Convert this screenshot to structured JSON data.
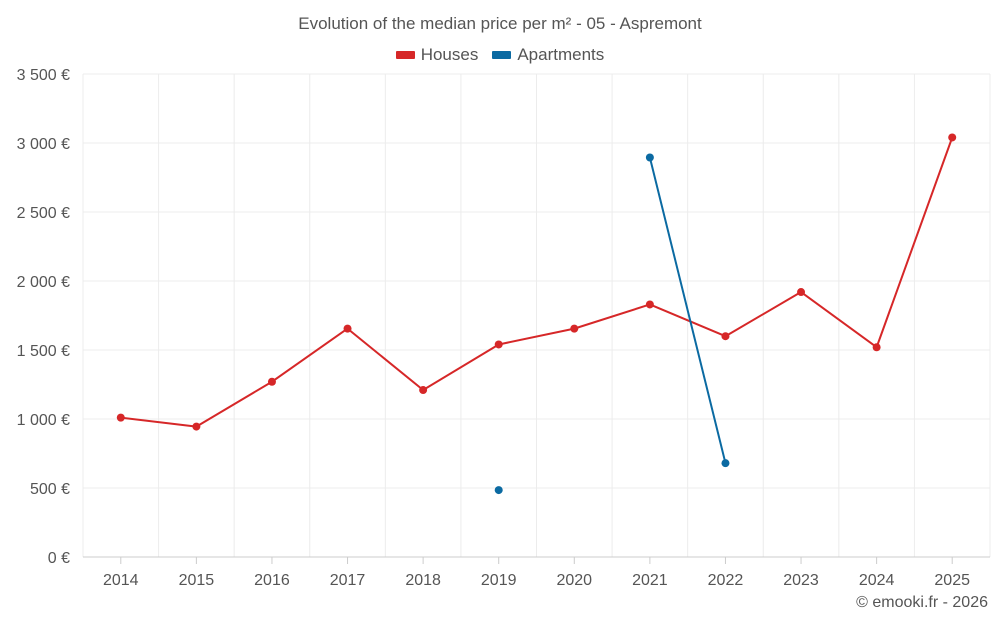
{
  "chart_data": {
    "type": "line",
    "title": "Evolution of the median price per m² - 05 - Aspremont",
    "categories": [
      "2014",
      "2015",
      "2016",
      "2017",
      "2018",
      "2019",
      "2020",
      "2021",
      "2022",
      "2023",
      "2024",
      "2025"
    ],
    "series": [
      {
        "name": "Houses",
        "color": "#d62728",
        "values": [
          1010,
          945,
          1270,
          1655,
          1210,
          1540,
          1655,
          1830,
          1600,
          1920,
          1520,
          3040
        ]
      },
      {
        "name": "Apartments",
        "color": "#0b6aa2",
        "values": [
          null,
          null,
          null,
          null,
          null,
          485,
          null,
          2895,
          680,
          null,
          null,
          null
        ]
      }
    ],
    "yticks": [
      "0 €",
      "500 €",
      "1 000 €",
      "1 500 €",
      "2 000 €",
      "2 500 €",
      "3 000 €",
      "3 500 €"
    ],
    "ylim": [
      0,
      3500
    ],
    "xlabel": "",
    "ylabel": "",
    "grid": true,
    "legend_position": "top-center"
  },
  "credit": "© emooki.fr - 2026"
}
